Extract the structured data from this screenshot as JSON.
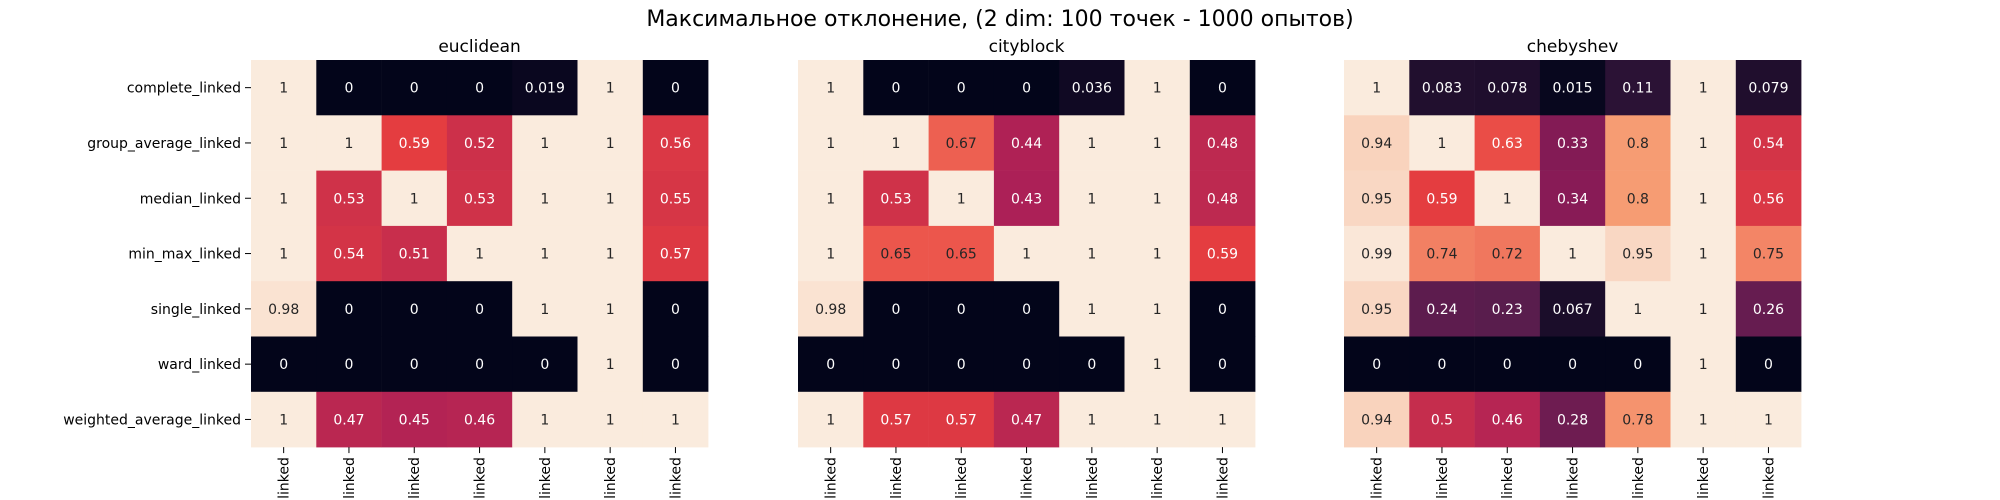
{
  "suptitle": "Максимальное отклонение, (2 dim: 100 точек - 1000 опытов)",
  "colormap": {
    "name": "rocket",
    "stops": [
      "#03051a",
      "#4c1d4b",
      "#a11a5b",
      "#e83f3f",
      "#f69c73",
      "#faebdd"
    ],
    "vmin": 0,
    "vmax": 1
  },
  "chart_data": [
    {
      "type": "heatmap",
      "title": "euclidean",
      "rows": [
        "complete_linked",
        "group_average_linked",
        "median_linked",
        "min_max_linked",
        "single_linked",
        "ward_linked",
        "weighted_average_linked"
      ],
      "cols": [
        "linked",
        "linked",
        "linked",
        "linked",
        "linked",
        "linked",
        "linked"
      ],
      "values": [
        [
          1,
          0,
          0,
          0,
          0.019,
          1,
          0
        ],
        [
          1,
          1,
          0.59,
          0.52,
          1,
          1,
          0.56
        ],
        [
          1,
          0.53,
          1,
          0.53,
          1,
          1,
          0.55
        ],
        [
          1,
          0.54,
          0.51,
          1,
          1,
          1,
          0.57
        ],
        [
          0.98,
          0,
          0,
          0,
          1,
          1,
          0
        ],
        [
          0,
          0,
          0,
          0,
          0,
          1,
          0
        ],
        [
          1,
          0.47,
          0.45,
          0.46,
          1,
          1,
          1
        ]
      ]
    },
    {
      "type": "heatmap",
      "title": "cityblock",
      "rows": [],
      "cols": [
        "linked",
        "linked",
        "linked",
        "linked",
        "linked",
        "linked",
        "linked"
      ],
      "values": [
        [
          1,
          0,
          0,
          0,
          0.036,
          1,
          0
        ],
        [
          1,
          1,
          0.67,
          0.44,
          1,
          1,
          0.48
        ],
        [
          1,
          0.53,
          1,
          0.43,
          1,
          1,
          0.48
        ],
        [
          1,
          0.65,
          0.65,
          1,
          1,
          1,
          0.59
        ],
        [
          0.98,
          0,
          0,
          0,
          1,
          1,
          0
        ],
        [
          0,
          0,
          0,
          0,
          0,
          1,
          0
        ],
        [
          1,
          0.57,
          0.57,
          0.47,
          1,
          1,
          1
        ]
      ]
    },
    {
      "type": "heatmap",
      "title": "chebyshev",
      "rows": [],
      "cols": [
        "linked",
        "linked",
        "linked",
        "linked",
        "linked",
        "linked",
        "linked"
      ],
      "values": [
        [
          1,
          0.083,
          0.078,
          0.015,
          0.11,
          1,
          0.079
        ],
        [
          0.94,
          1,
          0.63,
          0.33,
          0.8,
          1,
          0.54
        ],
        [
          0.95,
          0.59,
          1,
          0.34,
          0.8,
          1,
          0.56
        ],
        [
          0.99,
          0.74,
          0.72,
          1,
          0.95,
          1,
          0.75
        ],
        [
          0.95,
          0.24,
          0.23,
          0.067,
          1,
          1,
          0.26
        ],
        [
          0,
          0,
          0,
          0,
          0,
          1,
          0
        ],
        [
          0.94,
          0.5,
          0.46,
          0.28,
          0.78,
          1,
          1
        ]
      ]
    }
  ]
}
